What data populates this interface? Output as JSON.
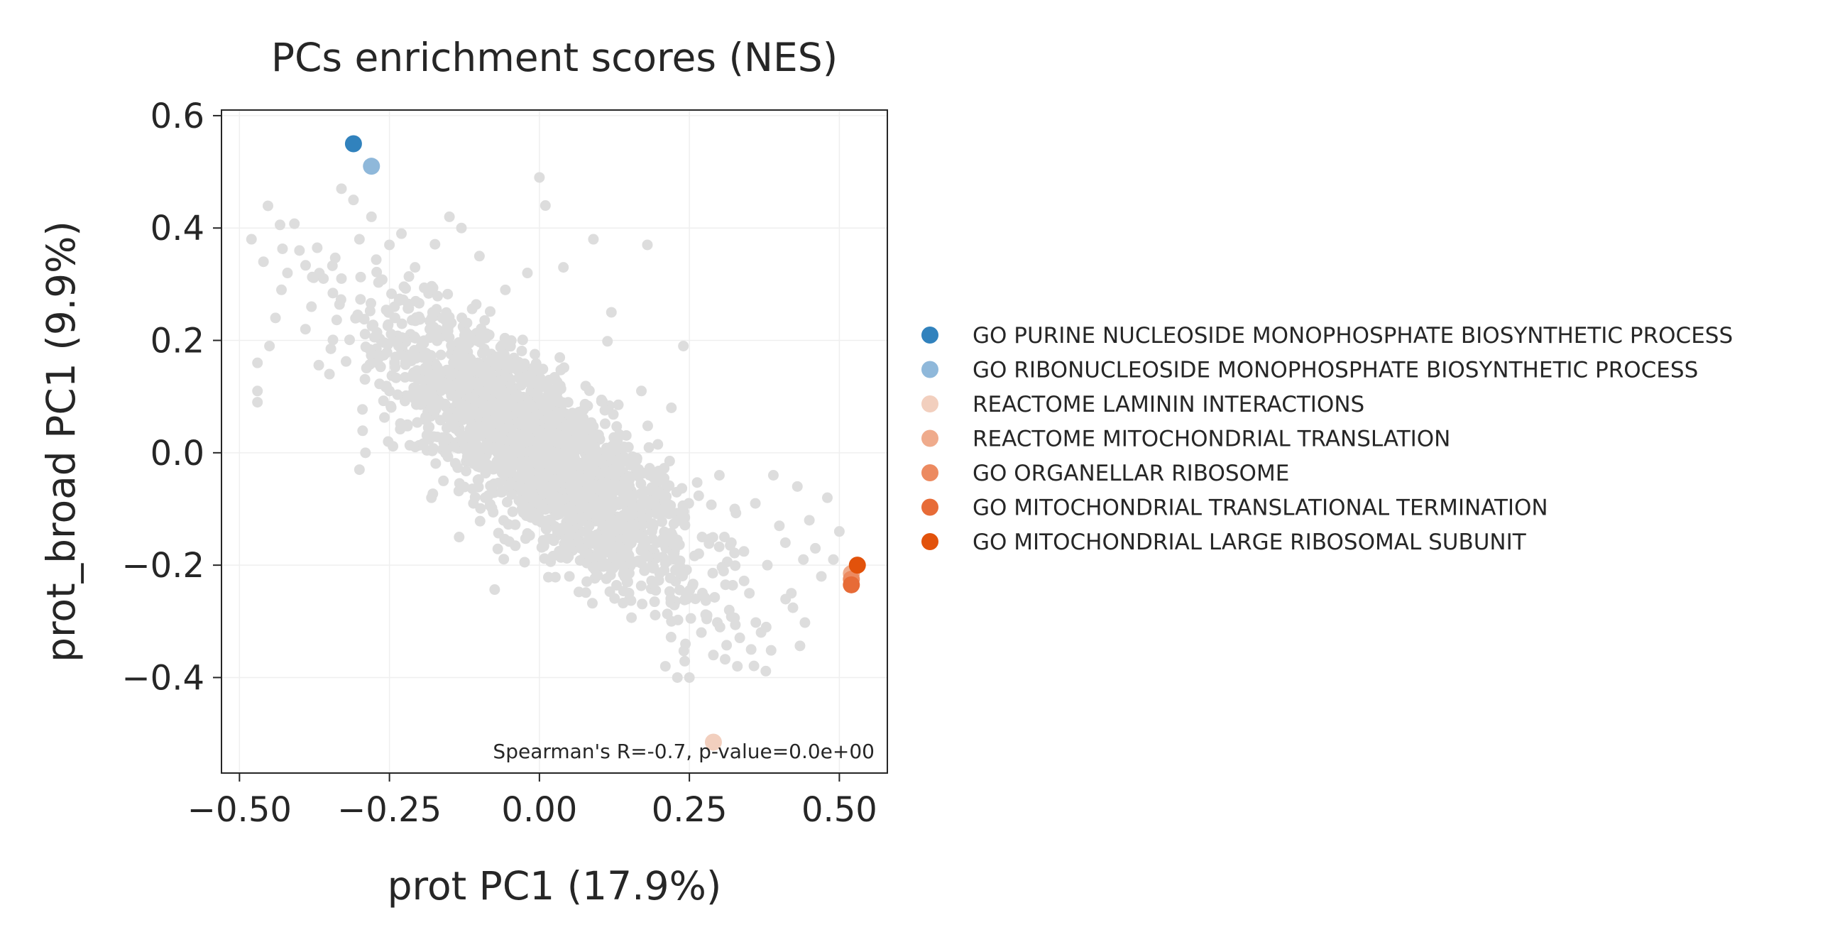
{
  "chart_data": {
    "type": "scatter",
    "title": "PCs enrichment scores (NES)",
    "xlabel": "prot PC1 (17.9%)",
    "ylabel": "prot_broad PC1 (9.9%)",
    "xlim": [
      -0.53,
      0.58
    ],
    "ylim": [
      -0.57,
      0.61
    ],
    "xticks": [
      -0.5,
      -0.25,
      0.0,
      0.25,
      0.5
    ],
    "xtick_labels": [
      "−0.50",
      "−0.25",
      "0.00",
      "0.25",
      "0.50"
    ],
    "yticks": [
      -0.4,
      -0.2,
      0.0,
      0.2,
      0.4,
      0.6
    ],
    "ytick_labels": [
      "−0.4",
      "−0.2",
      "0.0",
      "0.2",
      "0.4",
      "0.6"
    ],
    "grid": true,
    "legend_position": "right",
    "annotation": "Spearman's R=-0.7, p-value=0.0e+00",
    "background_series": {
      "color": "#dddddd",
      "description": "all gene sets",
      "trend": {
        "slope": -0.78,
        "intercept": 0.0,
        "n": 2200,
        "x_spread": 0.13,
        "y_spread": 0.075
      },
      "points": [
        [
          -0.48,
          0.38
        ],
        [
          -0.47,
          0.16
        ],
        [
          -0.47,
          0.11
        ],
        [
          -0.47,
          0.09
        ],
        [
          -0.46,
          0.34
        ],
        [
          -0.45,
          0.19
        ],
        [
          -0.44,
          0.24
        ],
        [
          -0.43,
          0.29
        ],
        [
          -0.42,
          0.32
        ],
        [
          -0.4,
          0.36
        ],
        [
          -0.39,
          0.22
        ],
        [
          -0.38,
          0.26
        ],
        [
          -0.36,
          0.31
        ],
        [
          -0.35,
          0.14
        ],
        [
          -0.33,
          0.31
        ],
        [
          -0.33,
          0.47
        ],
        [
          -0.31,
          0.45
        ],
        [
          -0.3,
          0.38
        ],
        [
          -0.28,
          0.42
        ],
        [
          -0.25,
          0.37
        ],
        [
          -0.23,
          0.39
        ],
        [
          -0.15,
          0.42
        ],
        [
          -0.13,
          0.4
        ],
        [
          -0.1,
          0.35
        ],
        [
          -0.02,
          0.32
        ],
        [
          0.0,
          0.49
        ],
        [
          0.01,
          0.44
        ],
        [
          0.04,
          0.33
        ],
        [
          0.09,
          0.38
        ],
        [
          0.18,
          0.37
        ],
        [
          -0.15,
          0.06
        ],
        [
          -0.09,
          0.07
        ],
        [
          -0.16,
          -0.05
        ],
        [
          -0.11,
          -0.09
        ],
        [
          -0.05,
          -0.06
        ],
        [
          0.01,
          -0.1
        ],
        [
          0.08,
          -0.18
        ],
        [
          0.05,
          -0.22
        ],
        [
          0.11,
          -0.2
        ],
        [
          0.19,
          -0.23
        ],
        [
          0.22,
          -0.3
        ],
        [
          0.26,
          -0.26
        ],
        [
          0.21,
          -0.38
        ],
        [
          0.23,
          -0.4
        ],
        [
          0.25,
          -0.4
        ],
        [
          0.27,
          -0.32
        ],
        [
          0.29,
          -0.36
        ],
        [
          0.33,
          -0.38
        ],
        [
          0.32,
          -0.16
        ],
        [
          0.35,
          -0.25
        ],
        [
          0.36,
          -0.09
        ],
        [
          0.38,
          -0.2
        ],
        [
          0.4,
          -0.13
        ],
        [
          0.42,
          -0.25
        ],
        [
          0.43,
          -0.06
        ],
        [
          0.44,
          -0.19
        ],
        [
          0.45,
          -0.12
        ],
        [
          0.46,
          -0.17
        ],
        [
          0.48,
          -0.08
        ],
        [
          0.49,
          -0.19
        ],
        [
          0.5,
          -0.14
        ],
        [
          0.47,
          -0.22
        ],
        [
          0.41,
          -0.16
        ],
        [
          0.39,
          -0.04
        ],
        [
          0.3,
          -0.04
        ],
        [
          0.24,
          0.19
        ],
        [
          0.17,
          0.11
        ],
        [
          0.22,
          0.08
        ],
        [
          0.12,
          0.25
        ],
        [
          -0.25,
          0.11
        ],
        [
          -0.27,
          0.16
        ],
        [
          -0.3,
          -0.03
        ],
        [
          -0.29,
          0.0
        ],
        [
          -0.22,
          0.05
        ],
        [
          -0.18,
          -0.08
        ]
      ]
    },
    "highlight_series": [
      {
        "name": "GO PURINE NUCLEOSIDE MONOPHOSPHATE BIOSYNTHETIC PROCESS",
        "color": "#3182bd",
        "x": -0.31,
        "y": 0.55
      },
      {
        "name": "GO RIBONUCLEOSIDE MONOPHOSPHATE BIOSYNTHETIC PROCESS",
        "color": "#8fb8da",
        "x": -0.28,
        "y": 0.51
      },
      {
        "name": "REACTOME LAMININ INTERACTIONS",
        "color": "#f2cfbe",
        "x": 0.29,
        "y": -0.515
      },
      {
        "name": "REACTOME MITOCHONDRIAL TRANSLATION",
        "color": "#efab8c",
        "x": 0.52,
        "y": -0.215
      },
      {
        "name": "GO ORGANELLAR RIBOSOME",
        "color": "#ec8a60",
        "x": 0.52,
        "y": -0.225
      },
      {
        "name": "GO MITOCHONDRIAL TRANSLATIONAL TERMINATION",
        "color": "#e76b37",
        "x": 0.52,
        "y": -0.235
      },
      {
        "name": "GO MITOCHONDRIAL LARGE RIBOSOMAL SUBUNIT",
        "color": "#e2520b",
        "x": 0.53,
        "y": -0.2
      }
    ]
  }
}
